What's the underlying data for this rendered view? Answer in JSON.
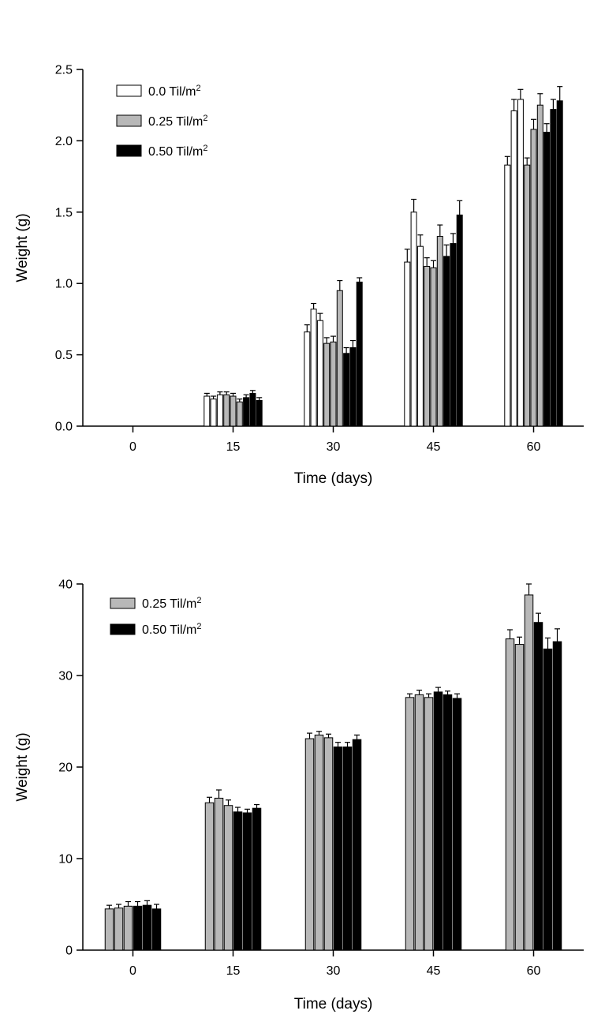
{
  "chart_data": [
    {
      "type": "bar",
      "title": "",
      "xlabel": "Time (days)",
      "ylabel": "Weight (g)",
      "ylim": [
        0,
        2.5
      ],
      "yticks": [
        0,
        0.5,
        1.0,
        1.5,
        2.0,
        2.5
      ],
      "ytick_labels": [
        "0.0",
        "0.5",
        "1.0",
        "1.5",
        "2.0",
        "2.5"
      ],
      "categories": [
        "0",
        "15",
        "30",
        "45",
        "60"
      ],
      "grid": false,
      "legend_position": "top-left",
      "error_bars": "upper",
      "series": [
        {
          "name": "0.0 Til/m²",
          "color": "#ffffff",
          "values": [
            [],
            [
              0.21,
              0.19,
              0.22
            ],
            [
              0.66,
              0.82,
              0.74
            ],
            [
              1.15,
              1.5,
              1.26
            ],
            [
              1.83,
              2.21,
              2.29
            ]
          ],
          "errors": [
            [],
            [
              0.02,
              0.02,
              0.02
            ],
            [
              0.05,
              0.04,
              0.05
            ],
            [
              0.09,
              0.09,
              0.08
            ],
            [
              0.06,
              0.08,
              0.07
            ]
          ]
        },
        {
          "name": "0.25 Til/m²",
          "color": "#b8b8b8",
          "values": [
            [],
            [
              0.22,
              0.21,
              0.17
            ],
            [
              0.58,
              0.59,
              0.95
            ],
            [
              1.12,
              1.11,
              1.33
            ],
            [
              1.83,
              2.08,
              2.25
            ]
          ],
          "errors": [
            [],
            [
              0.02,
              0.02,
              0.02
            ],
            [
              0.04,
              0.04,
              0.07
            ],
            [
              0.06,
              0.05,
              0.08
            ],
            [
              0.05,
              0.07,
              0.08
            ]
          ]
        },
        {
          "name": "0.50 Til/m²",
          "color": "#000000",
          "values": [
            [],
            [
              0.2,
              0.23,
              0.18
            ],
            [
              0.51,
              0.55,
              1.01
            ],
            [
              1.19,
              1.28,
              1.48
            ],
            [
              2.06,
              2.22,
              2.28
            ]
          ],
          "errors": [
            [],
            [
              0.02,
              0.02,
              0.02
            ],
            [
              0.04,
              0.05,
              0.03
            ],
            [
              0.08,
              0.07,
              0.1
            ],
            [
              0.06,
              0.07,
              0.1
            ]
          ]
        }
      ]
    },
    {
      "type": "bar",
      "title": "",
      "xlabel": "Time (days)",
      "ylabel": "Weight (g)",
      "ylim": [
        0,
        40
      ],
      "yticks": [
        0,
        10,
        20,
        30,
        40
      ],
      "ytick_labels": [
        "0",
        "10",
        "20",
        "30",
        "40"
      ],
      "categories": [
        "0",
        "15",
        "30",
        "45",
        "60"
      ],
      "grid": false,
      "legend_position": "top-left",
      "error_bars": "upper",
      "series": [
        {
          "name": "0.25 Til/m²",
          "color": "#b8b8b8",
          "values": [
            [
              4.5,
              4.6,
              4.8
            ],
            [
              16.1,
              16.6,
              15.8
            ],
            [
              23.1,
              23.5,
              23.2
            ],
            [
              27.6,
              27.9,
              27.6
            ],
            [
              34.0,
              33.4,
              38.8
            ]
          ],
          "errors": [
            [
              0.4,
              0.4,
              0.5
            ],
            [
              0.6,
              0.9,
              0.6
            ],
            [
              0.6,
              0.4,
              0.4
            ],
            [
              0.4,
              0.5,
              0.4
            ],
            [
              1.0,
              0.8,
              1.2
            ]
          ]
        },
        {
          "name": "0.50 Til/m²",
          "color": "#000000",
          "values": [
            [
              4.8,
              4.9,
              4.5
            ],
            [
              15.1,
              15.0,
              15.5
            ],
            [
              22.2,
              22.2,
              23.0
            ],
            [
              28.2,
              27.9,
              27.5
            ],
            [
              35.8,
              32.9,
              33.7
            ]
          ],
          "errors": [
            [
              0.5,
              0.5,
              0.5
            ],
            [
              0.5,
              0.4,
              0.4
            ],
            [
              0.5,
              0.5,
              0.5
            ],
            [
              0.5,
              0.4,
              0.5
            ],
            [
              1.0,
              1.2,
              1.4
            ]
          ]
        }
      ]
    }
  ]
}
